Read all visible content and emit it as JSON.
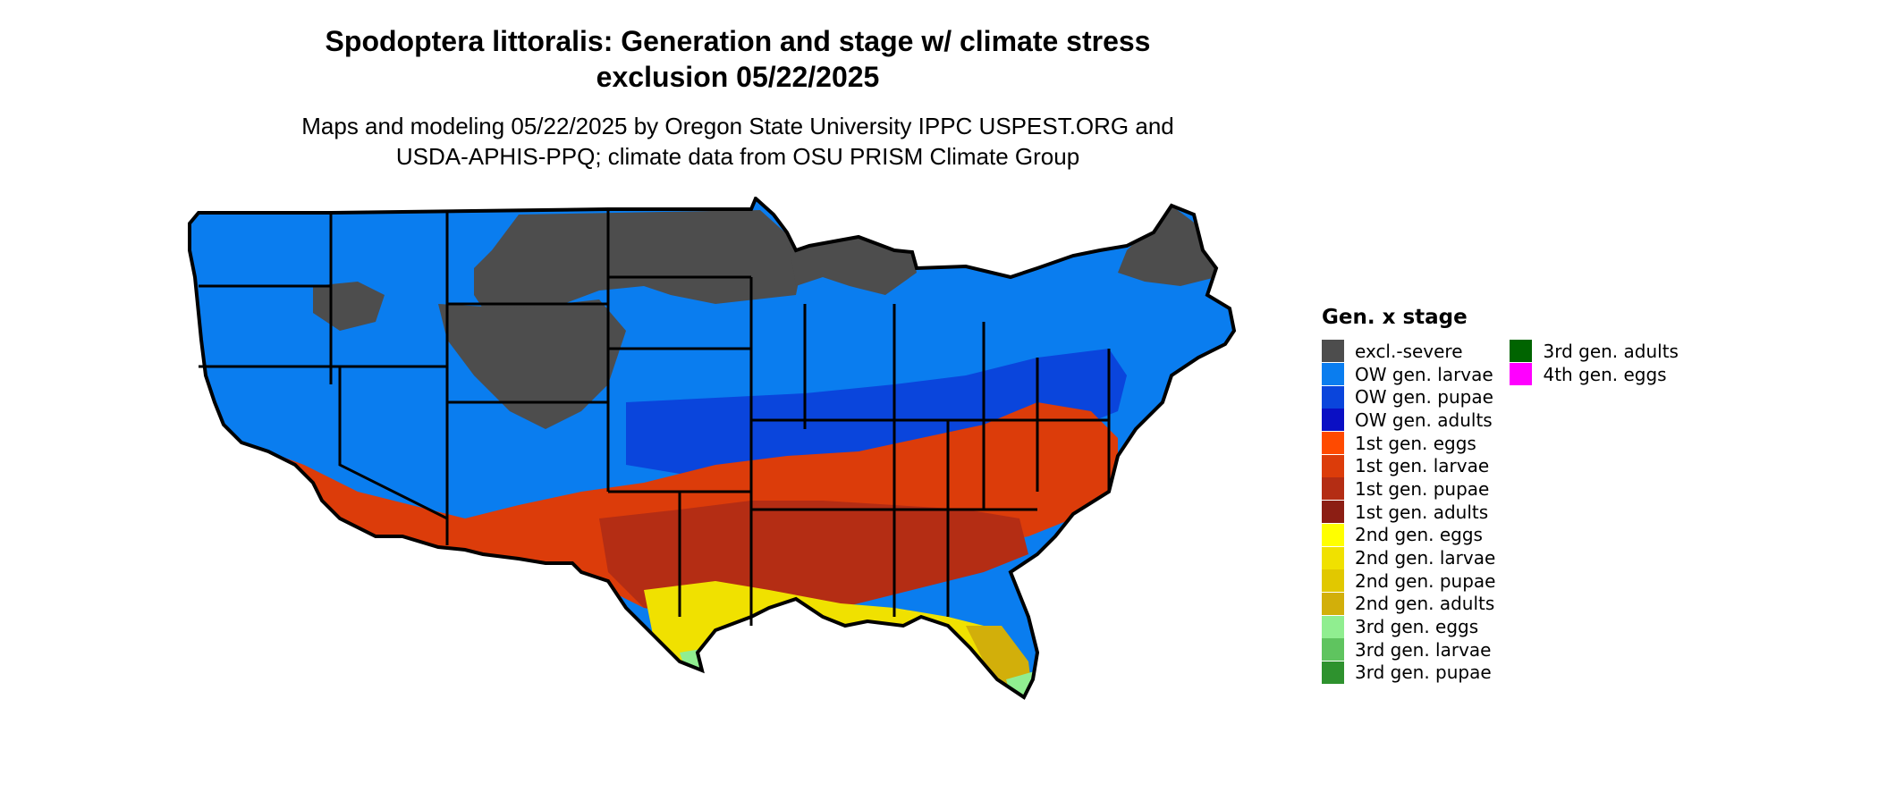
{
  "header": {
    "title_line1": "Spodoptera littoralis: Generation and stage w/ climate stress",
    "title_line2": "exclusion 05/22/2025",
    "subtitle_line1": "Maps and modeling 05/22/2025 by Oregon State University IPPC USPEST.ORG and",
    "subtitle_line2": "USDA-APHIS-PPQ; climate data from OSU PRISM Climate Group"
  },
  "legend": {
    "title": "Gen. x stage",
    "column1": [
      {
        "label": "excl.-severe",
        "color": "#4d4d4d"
      },
      {
        "label": "OW gen. larvae",
        "color": "#0a7def"
      },
      {
        "label": "OW gen. pupae",
        "color": "#0a45dc"
      },
      {
        "label": "OW gen. adults",
        "color": "#0a0fc4"
      },
      {
        "label": "1st gen. eggs",
        "color": "#ff4a00"
      },
      {
        "label": "1st gen. larvae",
        "color": "#dc3c0a"
      },
      {
        "label": "1st gen. pupae",
        "color": "#b42d14"
      },
      {
        "label": "1st gen. adults",
        "color": "#8c1e14"
      },
      {
        "label": "2nd gen. eggs",
        "color": "#ffff00"
      },
      {
        "label": "2nd gen. larvae",
        "color": "#f0e100"
      },
      {
        "label": "2nd gen. pupae",
        "color": "#e1c800"
      },
      {
        "label": "2nd gen. adults",
        "color": "#d2af0a"
      },
      {
        "label": "3rd gen. eggs",
        "color": "#90ee90"
      },
      {
        "label": "3rd gen. larvae",
        "color": "#5fc45f"
      },
      {
        "label": "3rd gen. pupae",
        "color": "#2e922e"
      }
    ],
    "column2": [
      {
        "label": "3rd gen. adults",
        "color": "#006400"
      },
      {
        "label": "4th gen. eggs",
        "color": "#ff00ff"
      }
    ]
  }
}
